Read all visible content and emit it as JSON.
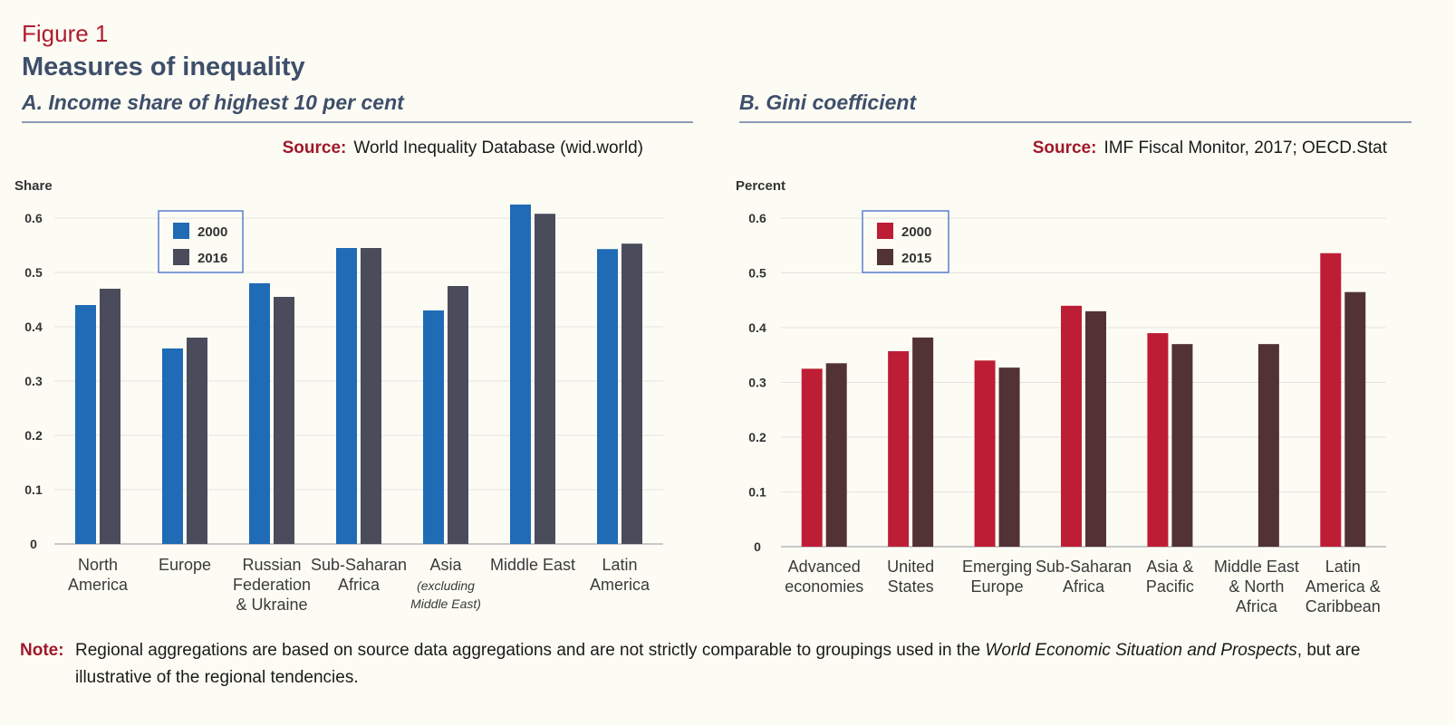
{
  "figure_label": "Figure 1",
  "figure_title": "Measures of inequality",
  "note": {
    "label": "Note:",
    "text_before": "Regional aggregations are based on source data aggregations and are not strictly comparable to groupings used in the ",
    "text_italic": "World Economic Situation and Prospects",
    "text_after": ", but are illustrative of the regional tendencies."
  },
  "chart_data": [
    {
      "type": "bar",
      "title": "A. Income share of highest 10 per cent",
      "source_label": "Source:",
      "source_text": "World Inequality Database (wid.world)",
      "ylabel": "Share",
      "ylim": [
        0,
        0.6
      ],
      "yticks": [
        "0",
        "0.1",
        "0.2",
        "0.3",
        "0.4",
        "0.5",
        "0.6"
      ],
      "grid": true,
      "legend_position": "top-left",
      "categories": [
        [
          "North",
          "America"
        ],
        [
          "Europe"
        ],
        [
          "Russian",
          "Federation",
          "& Ukraine"
        ],
        [
          "Sub-Saharan",
          "Africa"
        ],
        [
          "Asia"
        ],
        [
          "Middle East"
        ],
        [
          "Latin",
          "America"
        ]
      ],
      "category_notes": [
        "",
        "",
        "",
        "",
        "(excluding Middle East)",
        "",
        ""
      ],
      "series": [
        {
          "name": "2000",
          "color": "#1f6bb5",
          "values": [
            0.44,
            0.36,
            0.48,
            0.545,
            0.43,
            0.625,
            0.543
          ]
        },
        {
          "name": "2016",
          "color": "#4a4c5c",
          "values": [
            0.47,
            0.38,
            0.455,
            0.545,
            0.475,
            0.608,
            0.553
          ]
        }
      ]
    },
    {
      "type": "bar",
      "title": "B. Gini coefficient",
      "source_label": "Source:",
      "source_text": "IMF Fiscal Monitor, 2017; OECD.Stat",
      "ylabel": "Percent",
      "ylim": [
        0,
        0.6
      ],
      "yticks": [
        "0",
        "0.1",
        "0.2",
        "0.3",
        "0.4",
        "0.5",
        "0.6"
      ],
      "grid": true,
      "legend_position": "top-left",
      "categories": [
        [
          "Advanced",
          "economies"
        ],
        [
          "United",
          "States"
        ],
        [
          "Emerging",
          "Europe"
        ],
        [
          "Sub-Saharan",
          "Africa"
        ],
        [
          "Asia &",
          "Pacific"
        ],
        [
          "Middle East",
          "& North",
          "Africa"
        ],
        [
          "Latin",
          "America &",
          "Caribbean"
        ]
      ],
      "category_notes": [
        "",
        "",
        "",
        "",
        "",
        "",
        ""
      ],
      "series": [
        {
          "name": "2000",
          "color": "#be1e35",
          "values": [
            0.325,
            0.357,
            0.34,
            0.44,
            0.39,
            null,
            0.536
          ]
        },
        {
          "name": "2015",
          "color": "#523234",
          "values": [
            0.335,
            0.382,
            0.327,
            0.43,
            0.37,
            0.37,
            0.465
          ]
        }
      ]
    }
  ]
}
